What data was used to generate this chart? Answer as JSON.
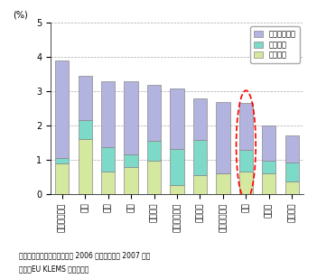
{
  "categories": [
    "スウェーデン",
    "豪州",
    "米国",
    "英国",
    "オランダ",
    "フィンランド",
    "スペイン",
    "オーストリア",
    "日本",
    "ドイツ",
    "イタリア"
  ],
  "computer": [
    0.9,
    1.6,
    0.65,
    0.78,
    0.97,
    0.27,
    0.55,
    0.6,
    0.65,
    0.6,
    0.37
  ],
  "telecom": [
    0.15,
    0.55,
    0.72,
    0.38,
    0.58,
    1.05,
    1.02,
    0.0,
    0.65,
    0.38,
    0.55
  ],
  "software": [
    2.85,
    1.3,
    1.93,
    2.14,
    1.65,
    1.75,
    1.23,
    2.1,
    1.35,
    1.02,
    0.78
  ],
  "color_computer": "#d4e8a0",
  "color_telecom": "#7dd9c8",
  "color_software": "#b3b3e0",
  "ylabel": "(%)",
  "ylim": [
    0,
    5
  ],
  "yticks": [
    0,
    1,
    2,
    3,
    4,
    5
  ],
  "legend_labels": [
    "ソフトウェア",
    "通信機器",
    "計算機器"
  ],
  "note1": "備考：名目ベース。日本のみ 2006 年、他の国は 2007 年。",
  "note2": "資料：EU KLEMS から作成。",
  "highlight_index": 8,
  "bar_width": 0.6
}
